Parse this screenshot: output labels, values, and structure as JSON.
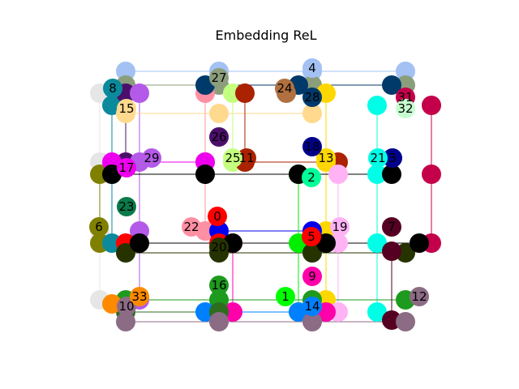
{
  "figure": {
    "title": "Embedding ReL"
  },
  "graph": {
    "legs": [
      {
        "color": "#a3c1f3",
        "cells": [
          [
            0,
            0
          ],
          [
            1,
            0
          ],
          [
            2,
            0
          ],
          [
            3,
            0
          ]
        ]
      },
      {
        "color": "#8b9e7c",
        "cells": [
          [
            0,
            0
          ],
          [
            1,
            0
          ],
          [
            2,
            0
          ],
          [
            3,
            0
          ]
        ]
      },
      {
        "color": "#e6e6e6",
        "cells": [
          [
            0,
            0
          ],
          [
            0,
            1
          ],
          [
            0,
            2
          ],
          [
            0,
            3
          ]
        ]
      },
      {
        "color": "#808000",
        "cells": [
          [
            0,
            1
          ],
          [
            0,
            2
          ]
        ]
      },
      {
        "color": "#0a8a9c",
        "cells": [
          [
            0,
            0
          ],
          [
            0,
            1
          ],
          [
            0,
            2
          ]
        ]
      },
      {
        "color": "#4b0f6b",
        "cells": [
          [
            0,
            0
          ],
          [
            0,
            1
          ]
        ]
      },
      {
        "color": "#b35ae8",
        "cells": [
          [
            0,
            0
          ],
          [
            0,
            1
          ],
          [
            0,
            2
          ],
          [
            0,
            3
          ]
        ]
      },
      {
        "color": "#ff8fa3",
        "cells": [
          [
            1,
            0
          ],
          [
            1,
            1
          ],
          [
            1,
            2
          ]
        ]
      },
      {
        "color": "#ffd98e",
        "cells": [
          [
            1,
            0
          ],
          [
            2,
            0
          ],
          [
            0,
            0
          ]
        ]
      },
      {
        "color": "#c5ff7f",
        "cells": [
          [
            1,
            0
          ],
          [
            1,
            1
          ]
        ]
      },
      {
        "color": "#aa2200",
        "cells": [
          [
            1,
            0
          ],
          [
            1,
            1
          ],
          [
            2,
            1
          ]
        ]
      },
      {
        "color": "#003a6b",
        "cells": [
          [
            1,
            0
          ],
          [
            2,
            0
          ],
          [
            3,
            0
          ]
        ]
      },
      {
        "color": "#b07040",
        "cells": [
          [
            2,
            0
          ]
        ]
      },
      {
        "color": "#ffd700",
        "cells": [
          [
            2,
            0
          ],
          [
            2,
            1
          ],
          [
            2,
            2
          ],
          [
            2,
            3
          ]
        ]
      },
      {
        "color": "#00ffe6",
        "cells": [
          [
            3,
            0
          ],
          [
            3,
            1
          ],
          [
            3,
            2
          ],
          [
            3,
            3
          ]
        ]
      },
      {
        "color": "#c4004a",
        "cells": [
          [
            3,
            0
          ],
          [
            3,
            1
          ],
          [
            3,
            2
          ]
        ]
      },
      {
        "color": "#ffb3f5",
        "cells": [
          [
            2,
            1
          ],
          [
            2,
            2
          ],
          [
            2,
            3
          ]
        ]
      },
      {
        "color": "#0000ee",
        "cells": [
          [
            1,
            2
          ],
          [
            2,
            2
          ]
        ]
      },
      {
        "color": "#ff0000",
        "cells": [
          [
            1,
            2
          ],
          [
            0,
            2
          ]
        ]
      },
      {
        "color": "#ff00aa",
        "cells": [
          [
            1,
            2
          ],
          [
            1,
            3
          ],
          [
            2,
            3
          ]
        ]
      },
      {
        "color": "#00ef00",
        "cells": [
          [
            2,
            1
          ],
          [
            2,
            2
          ],
          [
            2,
            3
          ]
        ]
      },
      {
        "color": "#263300",
        "cells": [
          [
            0,
            2
          ],
          [
            1,
            2
          ],
          [
            2,
            2
          ],
          [
            3,
            2
          ]
        ]
      },
      {
        "color": "#1e9a1e",
        "cells": [
          [
            0,
            3
          ],
          [
            1,
            3
          ],
          [
            2,
            3
          ],
          [
            3,
            3
          ]
        ]
      },
      {
        "color": "#0080ff",
        "cells": [
          [
            1,
            3
          ],
          [
            2,
            3
          ]
        ]
      },
      {
        "color": "#ee00ee",
        "cells": [
          [
            1,
            1
          ],
          [
            0,
            1
          ]
        ]
      },
      {
        "color": "#000000",
        "cells": [
          [
            0,
            1
          ],
          [
            1,
            1
          ],
          [
            2,
            1
          ],
          [
            3,
            1
          ]
        ]
      },
      {
        "color": "#000000",
        "cells": [
          [
            0,
            2
          ],
          [
            1,
            2
          ],
          [
            2,
            2
          ],
          [
            3,
            2
          ]
        ]
      },
      {
        "color": "#2c6e1e",
        "cells": [
          [
            0,
            3
          ],
          [
            1,
            3
          ]
        ]
      },
      {
        "color": "#ff8a00",
        "cells": [
          [
            0,
            3
          ]
        ]
      },
      {
        "color": "#550022",
        "cells": [
          [
            3,
            2
          ],
          [
            3,
            3
          ]
        ]
      },
      {
        "color": "#8c6b85",
        "cells": [
          [
            0,
            3
          ],
          [
            1,
            3
          ],
          [
            2,
            3
          ],
          [
            3,
            3
          ]
        ]
      }
    ],
    "nodes": [
      {
        "label": "0",
        "color": "#ff0000"
      },
      {
        "label": "1",
        "color": "#00ff00"
      },
      {
        "label": "2",
        "color": "#00ff99"
      },
      {
        "label": "3",
        "color": "#00008b"
      },
      {
        "label": "4",
        "color": "#a3c1f3"
      },
      {
        "label": "5",
        "color": "#ff0000"
      },
      {
        "label": "6",
        "color": "#808000"
      },
      {
        "label": "7",
        "color": "#550022"
      },
      {
        "label": "8",
        "color": "#0a8a9c"
      },
      {
        "label": "9",
        "color": "#ff00aa"
      },
      {
        "label": "10",
        "color": "#8c6b85"
      },
      {
        "label": "11",
        "color": "#aa2200"
      },
      {
        "label": "12",
        "color": "#8c6b85"
      },
      {
        "label": "13",
        "color": "#ffd700"
      },
      {
        "label": "14",
        "color": "#0080ff"
      },
      {
        "label": "15",
        "color": "#ffd98e"
      },
      {
        "label": "16",
        "color": "#1e9a1e"
      },
      {
        "label": "17",
        "color": "#ee00ee"
      },
      {
        "label": "18",
        "color": "#00008b"
      },
      {
        "label": "19",
        "color": "#ffb3f5"
      },
      {
        "label": "20",
        "color": "#263300"
      },
      {
        "label": "21",
        "color": "#00ffe6"
      },
      {
        "label": "22",
        "color": "#ff8fa3"
      },
      {
        "label": "23",
        "color": "#0a7a4a"
      },
      {
        "label": "24",
        "color": "#b07040"
      },
      {
        "label": "25",
        "color": "#c5ff7f"
      },
      {
        "label": "26",
        "color": "#4b0f6b"
      },
      {
        "label": "27",
        "color": "#8b9e7c"
      },
      {
        "label": "28",
        "color": "#003a6b"
      },
      {
        "label": "29",
        "color": "#b35ae8"
      },
      {
        "label": "31",
        "color": "#c4004a"
      },
      {
        "label": "32",
        "color": "#c5ffcf"
      },
      {
        "label": "33",
        "color": "#ff8a00"
      }
    ]
  }
}
